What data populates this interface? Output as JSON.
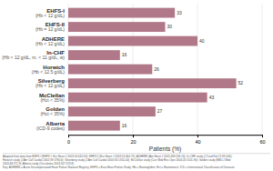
{
  "chart_data": {
    "type": "bar",
    "orientation": "horizontal",
    "categories": [
      "EHFS-I",
      "EHFS-II",
      "ADHERE",
      "In-CHF",
      "Horwich",
      "Silverberg",
      "McClellan",
      "Golden",
      "Alberta"
    ],
    "sublabels": [
      "(Hb < 12 g/dL)",
      "(Hb = 12 g/dL)",
      "(Hb < 12 g/dL)",
      "(Hb < 12 g/dL, m. < 11 g/dL, w)",
      "(Hb < 12.5 g/dL)",
      "(Hb < 12 g/dL)",
      "(Hct < 35%)",
      "(Hct < 35%)",
      "(ICD-9 codes)"
    ],
    "values": [
      33,
      30,
      40,
      16,
      26,
      52,
      43,
      27,
      16
    ],
    "color": "#b07888",
    "xlabel": "Patients (%)",
    "xlim": [
      0,
      60
    ],
    "xticks": [
      0,
      20,
      40,
      60
    ],
    "grid": true,
    "data_labels": true,
    "annotations": [
      "Adapted from data from EHFS I (EHFS I: Eur Heart J 2003;24:442-63); EHFS II (Eur Heart J 2003;24:464-75); ADHERE (Am Heart J 2005;349:209-16); In-CHF study (J Card Fail 11:99-506);",
      "Horwich study (J Am Coll Cardiol 2002;39:1780-6); Silverberg study (J Am Coll Cardiol 2000;35:1314-44); McClellan study (Curr Med Res Opin 2004;20:1501-90); Golden study (BMJ J Med",
      "2003;48:272-9); Alberta study (Circulation 2003;107:223-8)",
      "Key: ADHERE = Acute Decompensated Heart Failure National Registry; EHFS = Euro Heart Failure Study; Hb = Haemoglobin; Hct = Haematocrit; ICD = International Classification of Diseases"
    ]
  }
}
